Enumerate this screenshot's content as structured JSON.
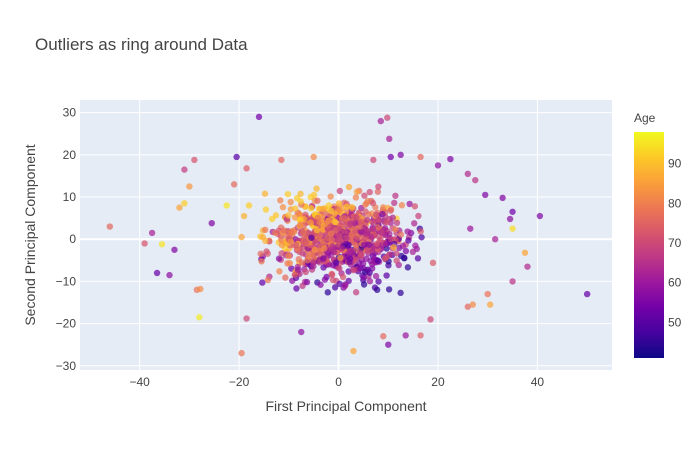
{
  "chart_data": {
    "type": "scatter",
    "title": "Outliers as ring around Data",
    "xlabel": "First Principal Component",
    "ylabel": "Second Principal Component",
    "xlim": [
      -52,
      55
    ],
    "ylim": [
      -31,
      33
    ],
    "xticks": [
      -40,
      -20,
      0,
      20,
      40
    ],
    "yticks": [
      -30,
      -20,
      -10,
      0,
      10,
      20,
      30
    ],
    "grid": true,
    "colorbar": {
      "title": "Age",
      "min": 41,
      "max": 98,
      "ticks": [
        50,
        60,
        70,
        80,
        90
      ],
      "colorscale": [
        "#0d0887",
        "#46039f",
        "#7201a8",
        "#9c179e",
        "#bd3786",
        "#d8576b",
        "#ed7953",
        "#fb9f3a",
        "#fdca26",
        "#f0f921"
      ]
    },
    "core_cluster": {
      "center": [
        0,
        0
      ],
      "spread": [
        7,
        4.8
      ],
      "count": 900,
      "age_range": [
        45,
        92
      ],
      "description_note": ""
    },
    "outliers": [
      {
        "x": -46,
        "y": 3,
        "age": 76
      },
      {
        "x": -39,
        "y": -1,
        "age": 72
      },
      {
        "x": -37.5,
        "y": 1.5,
        "age": 62
      },
      {
        "x": -36.5,
        "y": -8,
        "age": 52
      },
      {
        "x": -35.5,
        "y": -1.2,
        "age": 95
      },
      {
        "x": -34,
        "y": -8.5,
        "age": 58
      },
      {
        "x": -33,
        "y": -2.5,
        "age": 56
      },
      {
        "x": -32,
        "y": 7.5,
        "age": 86
      },
      {
        "x": -31,
        "y": 8.5,
        "age": 92
      },
      {
        "x": -31,
        "y": 16.5,
        "age": 68
      },
      {
        "x": -30,
        "y": 12.5,
        "age": 84
      },
      {
        "x": -29,
        "y": 18.8,
        "age": 72
      },
      {
        "x": -28.5,
        "y": -12,
        "age": 78
      },
      {
        "x": -27.8,
        "y": -11.8,
        "age": 82
      },
      {
        "x": -28,
        "y": -18.5,
        "age": 96
      },
      {
        "x": -25.5,
        "y": 3.8,
        "age": 56
      },
      {
        "x": -22.5,
        "y": 8,
        "age": 95
      },
      {
        "x": -21,
        "y": 13,
        "age": 76
      },
      {
        "x": -20.5,
        "y": 19.5,
        "age": 50
      },
      {
        "x": -19.5,
        "y": 0.5,
        "age": 86
      },
      {
        "x": -19.5,
        "y": -27,
        "age": 78
      },
      {
        "x": -19,
        "y": 5.5,
        "age": 88
      },
      {
        "x": -18.5,
        "y": -18.8,
        "age": 70
      },
      {
        "x": -18.5,
        "y": 16.8,
        "age": 74
      },
      {
        "x": -18,
        "y": 8,
        "age": 92
      },
      {
        "x": -16,
        "y": 29,
        "age": 54
      },
      {
        "x": -11.5,
        "y": 18.8,
        "age": 76
      },
      {
        "x": -7.5,
        "y": -22,
        "age": 58
      },
      {
        "x": -5,
        "y": 19.5,
        "age": 82
      },
      {
        "x": 3,
        "y": -26.5,
        "age": 86
      },
      {
        "x": 7,
        "y": 18.8,
        "age": 70
      },
      {
        "x": 8.5,
        "y": 28,
        "age": 62
      },
      {
        "x": 9,
        "y": -23,
        "age": 76
      },
      {
        "x": 9.8,
        "y": 28.8,
        "age": 70
      },
      {
        "x": 10,
        "y": -25,
        "age": 56
      },
      {
        "x": 10.2,
        "y": 23.8,
        "age": 62
      },
      {
        "x": 10.5,
        "y": 19.5,
        "age": 54
      },
      {
        "x": 12.5,
        "y": 20,
        "age": 56
      },
      {
        "x": 13.5,
        "y": -22.8,
        "age": 60
      },
      {
        "x": 16.5,
        "y": -22.8,
        "age": 74
      },
      {
        "x": 16.5,
        "y": 19.5,
        "age": 76
      },
      {
        "x": 18.5,
        "y": -19,
        "age": 70
      },
      {
        "x": 20,
        "y": 17.5,
        "age": 58
      },
      {
        "x": 22.5,
        "y": 19,
        "age": 56
      },
      {
        "x": 26,
        "y": 15.5,
        "age": 64
      },
      {
        "x": 26.5,
        "y": 2.5,
        "age": 60
      },
      {
        "x": 26,
        "y": -16,
        "age": 76
      },
      {
        "x": 27,
        "y": -15.5,
        "age": 82
      },
      {
        "x": 27.5,
        "y": 14,
        "age": 66
      },
      {
        "x": 29.5,
        "y": 10.5,
        "age": 56
      },
      {
        "x": 30,
        "y": -13,
        "age": 78
      },
      {
        "x": 30.5,
        "y": -15.5,
        "age": 86
      },
      {
        "x": 31.5,
        "y": 0,
        "age": 62
      },
      {
        "x": 33,
        "y": 9.8,
        "age": 56
      },
      {
        "x": 34.5,
        "y": 4.8,
        "age": 58
      },
      {
        "x": 35,
        "y": 6.5,
        "age": 54
      },
      {
        "x": 35,
        "y": 2.5,
        "age": 94
      },
      {
        "x": 35,
        "y": -10,
        "age": 66
      },
      {
        "x": 37.5,
        "y": -3.2,
        "age": 86
      },
      {
        "x": 38,
        "y": -6.5,
        "age": 64
      },
      {
        "x": 40.5,
        "y": 5.5,
        "age": 56
      },
      {
        "x": 50,
        "y": -13,
        "age": 52
      }
    ]
  }
}
